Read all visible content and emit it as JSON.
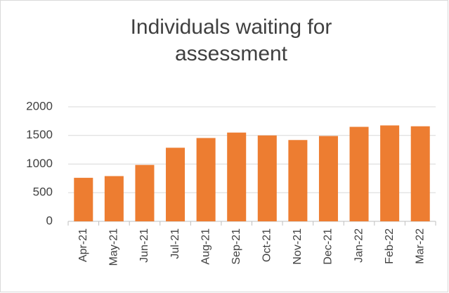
{
  "chart_data": {
    "type": "bar",
    "title": "Individuals waiting for assessment",
    "categories": [
      "Apr-21",
      "May-21",
      "Jun-21",
      "Jul-21",
      "Aug-21",
      "Sep-21",
      "Oct-21",
      "Nov-21",
      "Dec-21",
      "Jan-22",
      "Feb-22",
      "Mar-22"
    ],
    "values": [
      760,
      790,
      985,
      1285,
      1455,
      1550,
      1500,
      1420,
      1490,
      1650,
      1675,
      1660
    ],
    "color": "#ed7d31",
    "ylim": [
      0,
      2000
    ],
    "yticks": [
      0,
      500,
      1000,
      1500,
      2000
    ],
    "grid": true
  }
}
